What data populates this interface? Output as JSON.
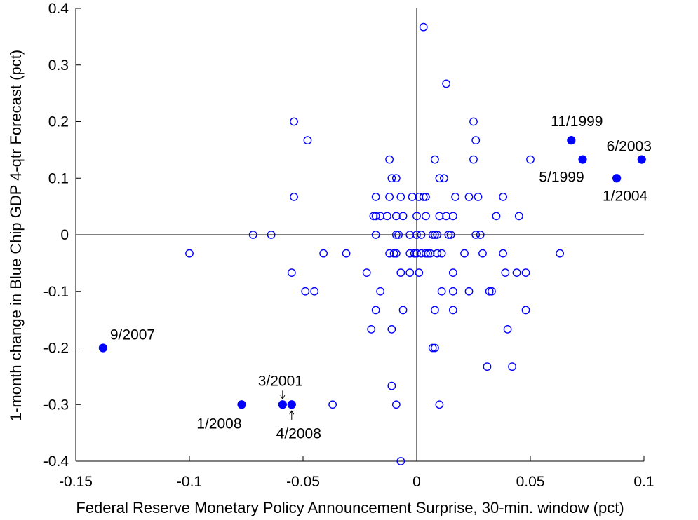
{
  "chart_data": {
    "type": "scatter",
    "title": "",
    "xlabel": "Federal Reserve Monetary Policy Announcement Surprise, 30-min. window (pct)",
    "ylabel": "1-month change in Blue Chip GDP 4-qtr Forecast (pct)",
    "xlim": [
      -0.15,
      0.1
    ],
    "ylim": [
      -0.4,
      0.4
    ],
    "x_ticks": [
      -0.15,
      -0.1,
      -0.05,
      0,
      0.05,
      0.1
    ],
    "x_tick_labels": [
      "-0.15",
      "-0.1",
      "-0.05",
      "0",
      "0.05",
      "0.1"
    ],
    "y_ticks": [
      -0.4,
      -0.3,
      -0.2,
      -0.1,
      0,
      0.1,
      0.2,
      0.3,
      0.4
    ],
    "y_tick_labels": [
      "-0.4",
      "-0.3",
      "-0.2",
      "-0.1",
      "0",
      "0.1",
      "0.2",
      "0.3",
      "0.4"
    ],
    "grid": false,
    "marker_color": "#0000ff",
    "series": [
      {
        "marker": "open-circle",
        "points": [
          [
            0.003,
            0.367
          ],
          [
            0.013,
            0.267
          ],
          [
            0.025,
            0.2
          ],
          [
            -0.054,
            0.2
          ],
          [
            0.026,
            0.167
          ],
          [
            -0.048,
            0.167
          ],
          [
            -0.012,
            0.133
          ],
          [
            0.008,
            0.133
          ],
          [
            0.025,
            0.133
          ],
          [
            0.05,
            0.133
          ],
          [
            -0.011,
            0.1
          ],
          [
            -0.009,
            0.1
          ],
          [
            0.01,
            0.1
          ],
          [
            0.012,
            0.1
          ],
          [
            -0.054,
            0.067
          ],
          [
            -0.018,
            0.067
          ],
          [
            -0.012,
            0.067
          ],
          [
            -0.007,
            0.067
          ],
          [
            -0.002,
            0.067
          ],
          [
            0.001,
            0.067
          ],
          [
            0.003,
            0.067
          ],
          [
            0.004,
            0.067
          ],
          [
            0.017,
            0.067
          ],
          [
            0.023,
            0.067
          ],
          [
            0.027,
            0.067
          ],
          [
            0.038,
            0.067
          ],
          [
            -0.019,
            0.033
          ],
          [
            -0.018,
            0.033
          ],
          [
            -0.016,
            0.033
          ],
          [
            -0.013,
            0.033
          ],
          [
            -0.009,
            0.033
          ],
          [
            -0.006,
            0.033
          ],
          [
            0.0,
            0.033
          ],
          [
            0.004,
            0.033
          ],
          [
            0.01,
            0.033
          ],
          [
            0.013,
            0.033
          ],
          [
            0.016,
            0.033
          ],
          [
            0.035,
            0.033
          ],
          [
            0.045,
            0.033
          ],
          [
            -0.072,
            0.0
          ],
          [
            -0.064,
            0.0
          ],
          [
            -0.018,
            0.0
          ],
          [
            -0.009,
            0.0
          ],
          [
            -0.008,
            0.0
          ],
          [
            -0.003,
            0.0
          ],
          [
            0.0,
            0.0
          ],
          [
            0.002,
            0.0
          ],
          [
            0.007,
            0.0
          ],
          [
            0.008,
            0.0
          ],
          [
            0.009,
            0.0
          ],
          [
            0.014,
            0.0
          ],
          [
            0.015,
            0.0
          ],
          [
            0.026,
            0.0
          ],
          [
            0.028,
            0.0
          ],
          [
            -0.1,
            -0.033
          ],
          [
            -0.041,
            -0.033
          ],
          [
            -0.031,
            -0.033
          ],
          [
            -0.012,
            -0.033
          ],
          [
            -0.01,
            -0.033
          ],
          [
            -0.009,
            -0.033
          ],
          [
            -0.003,
            -0.033
          ],
          [
            -0.001,
            -0.033
          ],
          [
            0.0,
            -0.033
          ],
          [
            0.002,
            -0.033
          ],
          [
            0.004,
            -0.033
          ],
          [
            0.005,
            -0.033
          ],
          [
            0.006,
            -0.033
          ],
          [
            0.009,
            -0.033
          ],
          [
            0.011,
            -0.033
          ],
          [
            0.021,
            -0.033
          ],
          [
            0.029,
            -0.033
          ],
          [
            0.038,
            -0.033
          ],
          [
            0.063,
            -0.033
          ],
          [
            -0.055,
            -0.067
          ],
          [
            -0.022,
            -0.067
          ],
          [
            -0.007,
            -0.067
          ],
          [
            -0.003,
            -0.067
          ],
          [
            0.001,
            -0.067
          ],
          [
            0.016,
            -0.067
          ],
          [
            0.039,
            -0.067
          ],
          [
            0.044,
            -0.067
          ],
          [
            0.048,
            -0.067
          ],
          [
            -0.049,
            -0.1
          ],
          [
            -0.045,
            -0.1
          ],
          [
            -0.016,
            -0.1
          ],
          [
            0.011,
            -0.1
          ],
          [
            0.016,
            -0.1
          ],
          [
            0.023,
            -0.1
          ],
          [
            0.032,
            -0.1
          ],
          [
            0.033,
            -0.1
          ],
          [
            -0.018,
            -0.133
          ],
          [
            -0.006,
            -0.133
          ],
          [
            0.008,
            -0.133
          ],
          [
            0.016,
            -0.133
          ],
          [
            0.048,
            -0.133
          ],
          [
            -0.02,
            -0.167
          ],
          [
            -0.011,
            -0.167
          ],
          [
            0.04,
            -0.167
          ],
          [
            0.007,
            -0.2
          ],
          [
            0.008,
            -0.2
          ],
          [
            0.031,
            -0.233
          ],
          [
            0.042,
            -0.233
          ],
          [
            -0.011,
            -0.267
          ],
          [
            -0.037,
            -0.3
          ],
          [
            -0.009,
            -0.3
          ],
          [
            0.01,
            -0.3
          ],
          [
            -0.007,
            -0.4
          ]
        ]
      },
      {
        "marker": "filled-circle",
        "points": [
          {
            "x": 0.068,
            "y": 0.167,
            "label": "11/1999"
          },
          {
            "x": 0.073,
            "y": 0.133,
            "label": "5/1999"
          },
          {
            "x": 0.099,
            "y": 0.133,
            "label": "6/2003"
          },
          {
            "x": 0.088,
            "y": 0.1,
            "label": "1/2004"
          },
          {
            "x": -0.138,
            "y": -0.2,
            "label": "9/2007"
          },
          {
            "x": -0.077,
            "y": -0.3,
            "label": "1/2008"
          },
          {
            "x": -0.059,
            "y": -0.3,
            "label": "3/2001"
          },
          {
            "x": -0.055,
            "y": -0.3,
            "label": "4/2008"
          }
        ]
      }
    ]
  }
}
